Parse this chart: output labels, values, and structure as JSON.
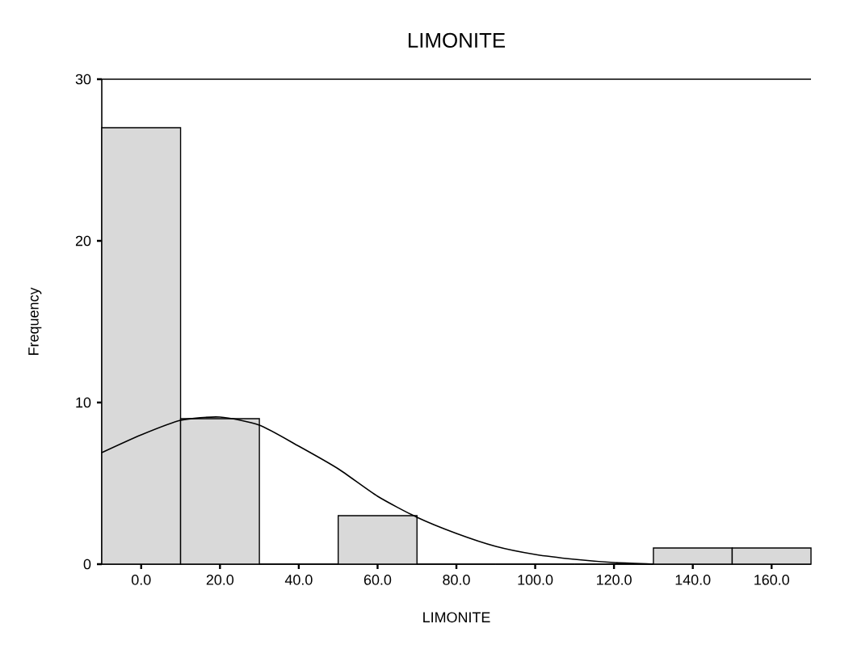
{
  "chart_data": {
    "type": "histogram",
    "title": "LIMONITE",
    "xlabel": "LIMONITE",
    "ylabel": "Frequency",
    "bins": [
      -10,
      10,
      30,
      50,
      70,
      90,
      110,
      130,
      150,
      170
    ],
    "values": [
      27,
      9,
      0,
      3,
      0,
      0,
      0,
      1,
      1
    ],
    "color": "#d9d9d9",
    "series": [
      {
        "type": "line",
        "color": "#000000",
        "x": [
          -10,
          0,
          10,
          20,
          30,
          40,
          50,
          60,
          70,
          80,
          90,
          100,
          110,
          120,
          130
        ],
        "values": [
          6.9,
          8.0,
          8.9,
          9.1,
          8.6,
          7.3,
          5.9,
          4.2,
          2.9,
          1.9,
          1.1,
          0.6,
          0.3,
          0.1,
          0
        ]
      }
    ],
    "xlim": [
      -10,
      170
    ],
    "ylim": [
      0,
      30
    ],
    "xticks": [
      {
        "value": 0,
        "label": "0.0"
      },
      {
        "value": 20,
        "label": "20.0"
      },
      {
        "value": 40,
        "label": "40.0"
      },
      {
        "value": 60,
        "label": "60.0"
      },
      {
        "value": 80,
        "label": "80.0"
      },
      {
        "value": 100,
        "label": "100.0"
      },
      {
        "value": 120,
        "label": "120.0"
      },
      {
        "value": 140,
        "label": "140.0"
      },
      {
        "value": 160,
        "label": "160.0"
      }
    ],
    "yticks": [
      0,
      10,
      20,
      30
    ],
    "grid": false
  }
}
